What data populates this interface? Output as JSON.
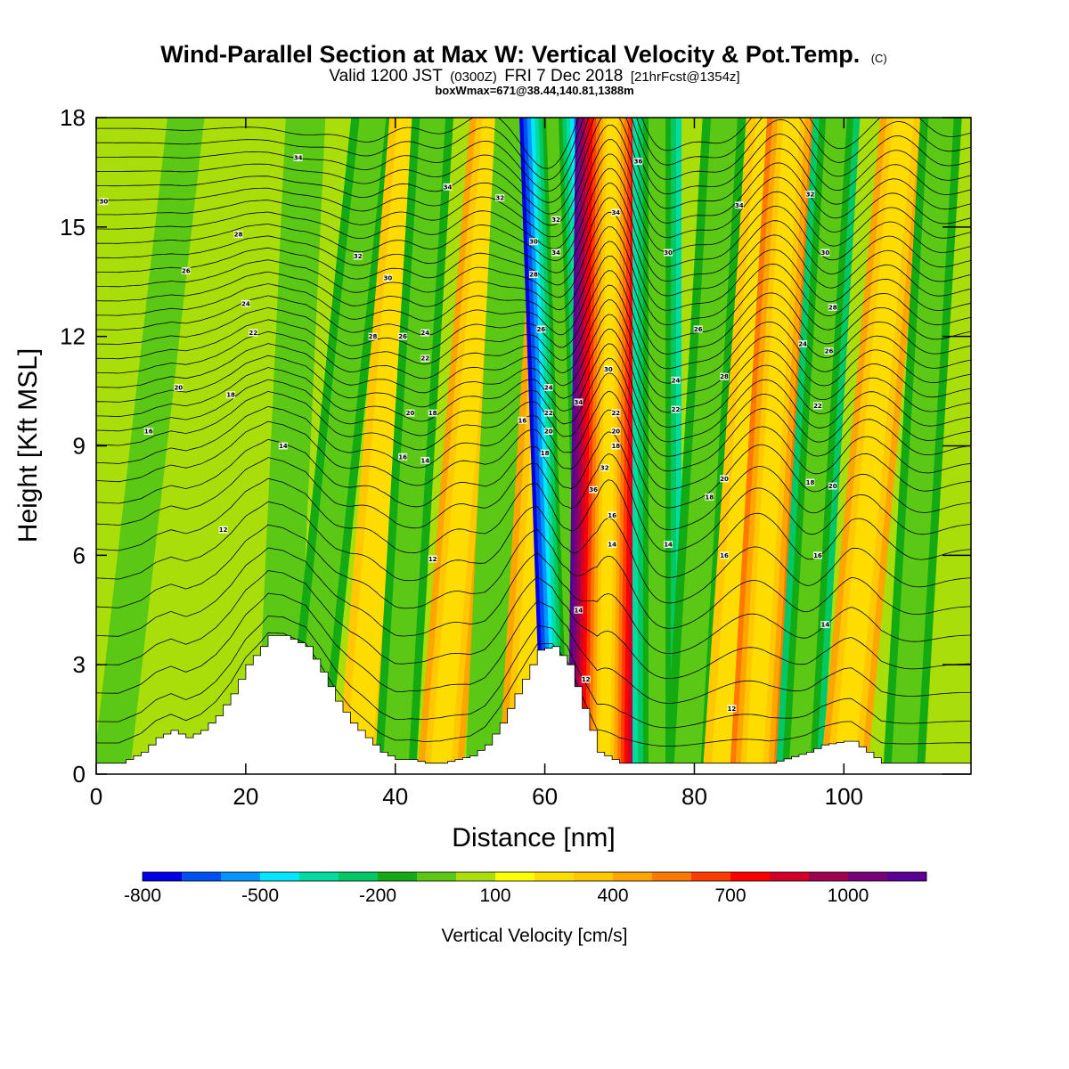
{
  "title": {
    "main": "Wind-Parallel Section at Max W: Vertical Velocity & Pot.Temp.",
    "copyright": "(C)",
    "valid_prefix": "Valid 1200 JST",
    "valid_utc": "(0300Z)",
    "valid_date": "FRI 7 Dec 2018",
    "forecast": "[21hrFcst@1354z]",
    "box_info": "boxWmax=671@38.44,140.81,1388m"
  },
  "chart_data": {
    "type": "heatmap",
    "xlabel": "Distance [nm]",
    "ylabel": "Height [Kft MSL]",
    "xlim": [
      0,
      117
    ],
    "ylim": [
      0,
      18
    ],
    "x_ticks": [
      0,
      20,
      40,
      60,
      80,
      100
    ],
    "y_ticks": [
      0,
      3,
      6,
      9,
      12,
      15,
      18
    ],
    "colorbar": {
      "title": "Vertical Velocity [cm/s]",
      "labels": [
        "-800",
        "-500",
        "-200",
        "100",
        "400",
        "700",
        "1000"
      ],
      "colors": [
        "#0000e6",
        "#0050f0",
        "#0096ff",
        "#00e6ff",
        "#00dca0",
        "#00c864",
        "#14aa14",
        "#5ac814",
        "#aade0a",
        "#ffff00",
        "#ffdc00",
        "#ffc800",
        "#ffa500",
        "#ff7800",
        "#ff3c00",
        "#ff0000",
        "#d20028",
        "#a00050",
        "#780078",
        "#5a0096"
      ]
    },
    "velocity_bands": [
      {
        "x_bottom": 2,
        "x_top": 12,
        "w_cm_s": -30
      },
      {
        "x_bottom": 24,
        "x_top": 28,
        "w_cm_s": -100
      },
      {
        "x_bottom": 28,
        "x_top": 37,
        "w_cm_s": -200
      },
      {
        "x_bottom": 35,
        "x_top": 42,
        "w_cm_s": 150
      },
      {
        "x_bottom": 40,
        "x_top": 45,
        "w_cm_s": -150
      },
      {
        "x_bottom": 46,
        "x_top": 53,
        "w_cm_s": 250
      },
      {
        "x_bottom": 52,
        "x_top": 56,
        "w_cm_s": -100
      },
      {
        "x_bottom": 57,
        "x_top": 62,
        "w_cm_s": 300
      },
      {
        "x_bottom": 64,
        "x_top": 61,
        "w_cm_s": -800
      },
      {
        "x_bottom": 68,
        "x_top": 69,
        "w_cm_s": 1000
      },
      {
        "x_bottom": 75,
        "x_top": 75,
        "w_cm_s": -350
      },
      {
        "x_bottom": 79,
        "x_top": 84,
        "w_cm_s": -200
      },
      {
        "x_bottom": 84,
        "x_top": 90,
        "w_cm_s": 200
      },
      {
        "x_bottom": 88,
        "x_top": 93,
        "w_cm_s": 350
      },
      {
        "x_bottom": 94,
        "x_top": 99,
        "w_cm_s": -300
      },
      {
        "x_bottom": 100,
        "x_top": 108,
        "w_cm_s": 300
      },
      {
        "x_bottom": 108,
        "x_top": 113,
        "w_cm_s": -150
      }
    ],
    "terrain": {
      "x": [
        0,
        3,
        6,
        8,
        10,
        12,
        14,
        16,
        18,
        20,
        22,
        23,
        25,
        28,
        30,
        32,
        34,
        36,
        38,
        40,
        42,
        44,
        46,
        48,
        50,
        52,
        54,
        56,
        58,
        59,
        61,
        63,
        64,
        65,
        66,
        67,
        70,
        75,
        80,
        85,
        90,
        95,
        97,
        100,
        101,
        103,
        105,
        110,
        117
      ],
      "height_kft": [
        0.3,
        0.3,
        0.6,
        1.0,
        1.2,
        1.0,
        1.2,
        1.6,
        2.2,
        3.0,
        3.5,
        3.8,
        3.8,
        3.5,
        2.8,
        2.0,
        1.4,
        1.0,
        0.6,
        0.4,
        0.4,
        0.3,
        0.3,
        0.4,
        0.5,
        0.8,
        1.4,
        2.2,
        3.0,
        3.4,
        3.5,
        3.0,
        2.4,
        1.8,
        1.2,
        0.6,
        0.3,
        0.3,
        0.3,
        0.3,
        0.3,
        0.6,
        0.8,
        0.9,
        0.9,
        0.6,
        0.3,
        0.3,
        0.3
      ]
    },
    "theta_contours": {
      "levels_kft": [
        0.6,
        1.2,
        2.0,
        2.8,
        3.6,
        4.4,
        5.2,
        6.0,
        6.7,
        7.3,
        7.9,
        8.4,
        8.9,
        9.3,
        9.7,
        10.1,
        10.5,
        10.9,
        11.3,
        11.7,
        12.1,
        12.5,
        12.9,
        13.3,
        13.7,
        14.1,
        14.5,
        14.9,
        15.3,
        15.7,
        16.1,
        16.5,
        16.9,
        17.3,
        17.7
      ],
      "labels": [
        {
          "x": 1.0,
          "y": 15.7,
          "text": "30"
        },
        {
          "x": 19.0,
          "y": 14.8,
          "text": "28"
        },
        {
          "x": 12.0,
          "y": 13.8,
          "text": "26"
        },
        {
          "x": 20.0,
          "y": 12.9,
          "text": "24"
        },
        {
          "x": 21.0,
          "y": 12.1,
          "text": "22"
        },
        {
          "x": 11.0,
          "y": 10.6,
          "text": "20"
        },
        {
          "x": 18.0,
          "y": 10.4,
          "text": "18"
        },
        {
          "x": 7.0,
          "y": 9.4,
          "text": "16"
        },
        {
          "x": 25.0,
          "y": 9.0,
          "text": "14"
        },
        {
          "x": 17.0,
          "y": 6.7,
          "text": "12"
        },
        {
          "x": 27.0,
          "y": 16.9,
          "text": "34"
        },
        {
          "x": 35.0,
          "y": 14.2,
          "text": "32"
        },
        {
          "x": 39.0,
          "y": 13.6,
          "text": "30"
        },
        {
          "x": 37.0,
          "y": 12.0,
          "text": "28"
        },
        {
          "x": 41.0,
          "y": 12.0,
          "text": "26"
        },
        {
          "x": 44.0,
          "y": 12.1,
          "text": "24"
        },
        {
          "x": 44.0,
          "y": 11.4,
          "text": "22"
        },
        {
          "x": 42.0,
          "y": 9.9,
          "text": "20"
        },
        {
          "x": 45.0,
          "y": 9.9,
          "text": "18"
        },
        {
          "x": 41.0,
          "y": 8.7,
          "text": "16"
        },
        {
          "x": 44.0,
          "y": 8.6,
          "text": "14"
        },
        {
          "x": 45.0,
          "y": 5.9,
          "text": "12"
        },
        {
          "x": 47.0,
          "y": 16.1,
          "text": "34"
        },
        {
          "x": 54.0,
          "y": 15.8,
          "text": "32"
        },
        {
          "x": 57.0,
          "y": 9.7,
          "text": "16"
        },
        {
          "x": 58.5,
          "y": 14.6,
          "text": "30"
        },
        {
          "x": 58.5,
          "y": 13.7,
          "text": "28"
        },
        {
          "x": 59.5,
          "y": 12.2,
          "text": "26"
        },
        {
          "x": 60.5,
          "y": 10.6,
          "text": "24"
        },
        {
          "x": 60.5,
          "y": 9.9,
          "text": "22"
        },
        {
          "x": 60.5,
          "y": 9.4,
          "text": "20"
        },
        {
          "x": 60.0,
          "y": 8.8,
          "text": "18"
        },
        {
          "x": 61.5,
          "y": 15.2,
          "text": "32"
        },
        {
          "x": 61.5,
          "y": 14.3,
          "text": "34"
        },
        {
          "x": 64.5,
          "y": 10.2,
          "text": "34"
        },
        {
          "x": 66.5,
          "y": 7.8,
          "text": "36"
        },
        {
          "x": 68.0,
          "y": 8.4,
          "text": "32"
        },
        {
          "x": 68.5,
          "y": 11.1,
          "text": "30"
        },
        {
          "x": 69.5,
          "y": 9.9,
          "text": "22"
        },
        {
          "x": 69.5,
          "y": 9.4,
          "text": "20"
        },
        {
          "x": 69.5,
          "y": 9.0,
          "text": "18"
        },
        {
          "x": 69.0,
          "y": 7.1,
          "text": "16"
        },
        {
          "x": 69.0,
          "y": 6.3,
          "text": "14"
        },
        {
          "x": 69.5,
          "y": 15.4,
          "text": "34"
        },
        {
          "x": 72.5,
          "y": 16.8,
          "text": "36"
        },
        {
          "x": 64.5,
          "y": 4.5,
          "text": "14"
        },
        {
          "x": 65.5,
          "y": 2.6,
          "text": "12"
        },
        {
          "x": 76.5,
          "y": 14.3,
          "text": "30"
        },
        {
          "x": 77.5,
          "y": 10.8,
          "text": "24"
        },
        {
          "x": 77.5,
          "y": 10.0,
          "text": "22"
        },
        {
          "x": 80.5,
          "y": 12.2,
          "text": "26"
        },
        {
          "x": 84.0,
          "y": 10.9,
          "text": "28"
        },
        {
          "x": 84.0,
          "y": 8.1,
          "text": "20"
        },
        {
          "x": 82.0,
          "y": 7.6,
          "text": "18"
        },
        {
          "x": 76.5,
          "y": 6.3,
          "text": "14"
        },
        {
          "x": 84.0,
          "y": 6.0,
          "text": "16"
        },
        {
          "x": 85.0,
          "y": 1.8,
          "text": "12"
        },
        {
          "x": 86.0,
          "y": 15.6,
          "text": "34"
        },
        {
          "x": 95.5,
          "y": 15.9,
          "text": "32"
        },
        {
          "x": 97.5,
          "y": 14.3,
          "text": "30"
        },
        {
          "x": 98.5,
          "y": 12.8,
          "text": "28"
        },
        {
          "x": 98.0,
          "y": 11.6,
          "text": "26"
        },
        {
          "x": 94.5,
          "y": 11.8,
          "text": "24"
        },
        {
          "x": 96.5,
          "y": 10.1,
          "text": "22"
        },
        {
          "x": 95.5,
          "y": 8.0,
          "text": "18"
        },
        {
          "x": 98.5,
          "y": 7.9,
          "text": "20"
        },
        {
          "x": 96.5,
          "y": 6.0,
          "text": "16"
        },
        {
          "x": 97.5,
          "y": 4.1,
          "text": "14"
        }
      ]
    }
  }
}
